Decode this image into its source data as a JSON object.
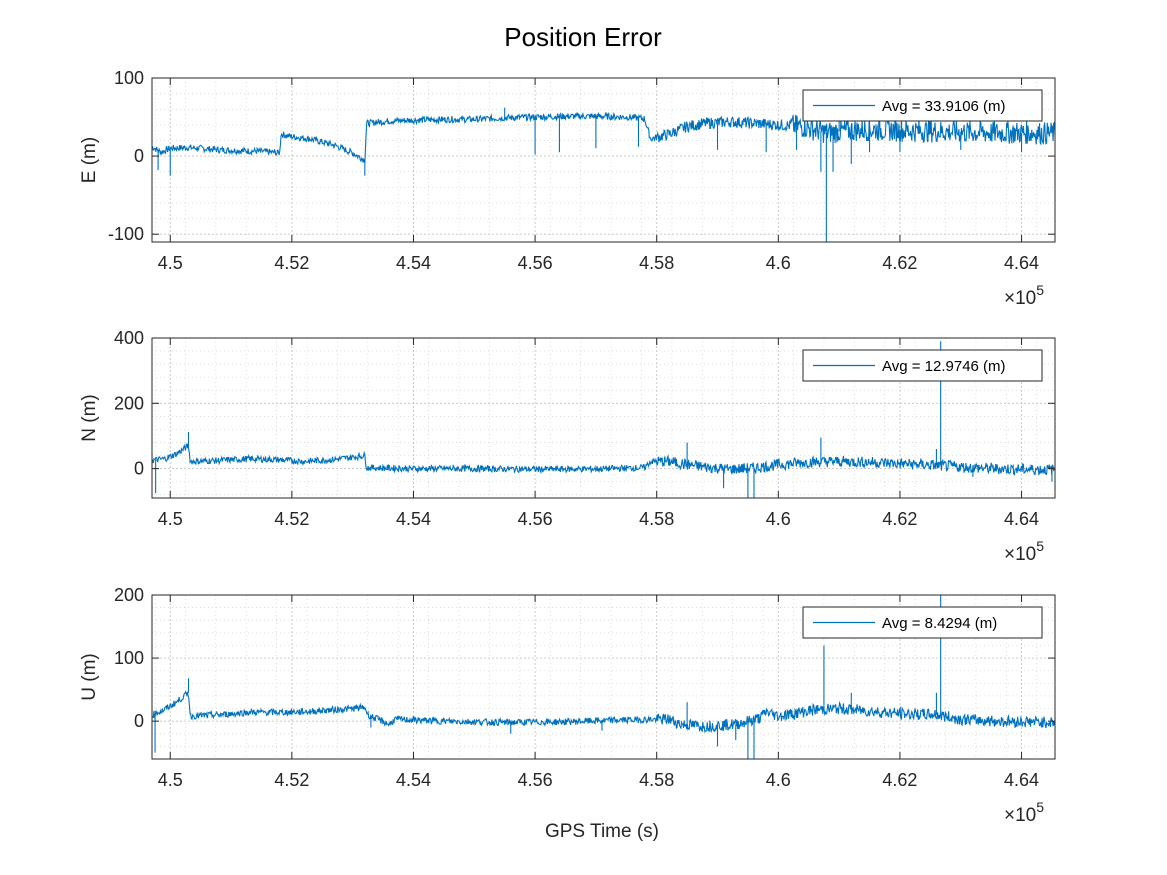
{
  "chart_data": {
    "type": "line",
    "title": "Position Error",
    "xlabel": "GPS Time (s)",
    "x_exponent_label": "×10",
    "x_exponent": "5",
    "xlim": [
      449700,
      464550
    ],
    "x_ticks": [
      450000,
      452000,
      454000,
      456000,
      458000,
      460000,
      462000,
      464000
    ],
    "x_tick_labels": [
      "4.5",
      "4.52",
      "4.54",
      "4.56",
      "4.58",
      "4.6",
      "4.62",
      "4.64"
    ],
    "grid": true,
    "minor_grid": true,
    "line_color": "#0072BD",
    "legend_location": "top-right",
    "subplots": [
      {
        "ylabel": "E (m)",
        "ylim": [
          -110,
          100
        ],
        "y_ticks": [
          -100,
          0,
          100
        ],
        "y_tick_labels": [
          "-100",
          "0",
          "100"
        ],
        "legend": "Avg = 33.9106 (m)",
        "series": [
          {
            "x": 449700,
            "y": 12
          },
          {
            "x": 449850,
            "y": 5
          },
          {
            "x": 450000,
            "y": 10
          },
          {
            "x": 450300,
            "y": 11
          },
          {
            "x": 450800,
            "y": 8
          },
          {
            "x": 451500,
            "y": 6
          },
          {
            "x": 451800,
            "y": 4
          },
          {
            "x": 451820,
            "y": 28
          },
          {
            "x": 452000,
            "y": 25
          },
          {
            "x": 452300,
            "y": 22
          },
          {
            "x": 452700,
            "y": 14
          },
          {
            "x": 453000,
            "y": 4
          },
          {
            "x": 453200,
            "y": -5
          },
          {
            "x": 453230,
            "y": 42
          },
          {
            "x": 453600,
            "y": 45
          },
          {
            "x": 454000,
            "y": 46
          },
          {
            "x": 454500,
            "y": 47
          },
          {
            "x": 455000,
            "y": 47
          },
          {
            "x": 455500,
            "y": 49
          },
          {
            "x": 456000,
            "y": 50
          },
          {
            "x": 456500,
            "y": 51
          },
          {
            "x": 457000,
            "y": 51
          },
          {
            "x": 457500,
            "y": 50
          },
          {
            "x": 457800,
            "y": 48
          },
          {
            "x": 457900,
            "y": 22
          },
          {
            "x": 458200,
            "y": 28
          },
          {
            "x": 458500,
            "y": 38
          },
          {
            "x": 458800,
            "y": 42
          },
          {
            "x": 459200,
            "y": 44
          },
          {
            "x": 459600,
            "y": 42
          },
          {
            "x": 460000,
            "y": 40
          },
          {
            "x": 460400,
            "y": 38
          },
          {
            "x": 460800,
            "y": 30
          },
          {
            "x": 461200,
            "y": 33
          },
          {
            "x": 461600,
            "y": 34
          },
          {
            "x": 462000,
            "y": 33
          },
          {
            "x": 462500,
            "y": 32
          },
          {
            "x": 463000,
            "y": 31
          },
          {
            "x": 463500,
            "y": 30
          },
          {
            "x": 464000,
            "y": 30
          },
          {
            "x": 464550,
            "y": 29
          }
        ],
        "spikes": [
          {
            "x": 449800,
            "y": -18
          },
          {
            "x": 450000,
            "y": -25
          },
          {
            "x": 453200,
            "y": -25
          },
          {
            "x": 455500,
            "y": 62
          },
          {
            "x": 456000,
            "y": 2
          },
          {
            "x": 456400,
            "y": 5
          },
          {
            "x": 457000,
            "y": 10
          },
          {
            "x": 457700,
            "y": 12
          },
          {
            "x": 459000,
            "y": 8
          },
          {
            "x": 459800,
            "y": 5
          },
          {
            "x": 460300,
            "y": 8
          },
          {
            "x": 460700,
            "y": -20
          },
          {
            "x": 460790,
            "y": -110
          },
          {
            "x": 460900,
            "y": -20
          },
          {
            "x": 461200,
            "y": -10
          },
          {
            "x": 461500,
            "y": 5
          },
          {
            "x": 461000,
            "y": 60
          },
          {
            "x": 462000,
            "y": 5
          },
          {
            "x": 463000,
            "y": 8
          },
          {
            "x": 464000,
            "y": 5
          }
        ]
      },
      {
        "ylabel": "N (m)",
        "ylim": [
          -90,
          400
        ],
        "y_ticks": [
          0,
          200,
          400
        ],
        "y_tick_labels": [
          "0",
          "200",
          "400"
        ],
        "legend": "Avg = 12.9746 (m)",
        "series": [
          {
            "x": 449700,
            "y": 25
          },
          {
            "x": 449900,
            "y": 30
          },
          {
            "x": 450100,
            "y": 45
          },
          {
            "x": 450300,
            "y": 70
          },
          {
            "x": 450330,
            "y": 22
          },
          {
            "x": 450800,
            "y": 25
          },
          {
            "x": 451300,
            "y": 30
          },
          {
            "x": 451800,
            "y": 27
          },
          {
            "x": 452200,
            "y": 22
          },
          {
            "x": 452700,
            "y": 28
          },
          {
            "x": 453000,
            "y": 35
          },
          {
            "x": 453200,
            "y": 40
          },
          {
            "x": 453230,
            "y": 3
          },
          {
            "x": 454000,
            "y": 0
          },
          {
            "x": 455000,
            "y": 0
          },
          {
            "x": 456000,
            "y": -2
          },
          {
            "x": 457000,
            "y": -1
          },
          {
            "x": 457800,
            "y": 3
          },
          {
            "x": 457900,
            "y": 22
          },
          {
            "x": 458200,
            "y": 22
          },
          {
            "x": 458500,
            "y": 12
          },
          {
            "x": 458800,
            "y": 5
          },
          {
            "x": 459200,
            "y": -2
          },
          {
            "x": 459600,
            "y": 2
          },
          {
            "x": 460000,
            "y": 12
          },
          {
            "x": 460500,
            "y": 20
          },
          {
            "x": 461000,
            "y": 22
          },
          {
            "x": 461500,
            "y": 20
          },
          {
            "x": 462000,
            "y": 15
          },
          {
            "x": 462600,
            "y": 10
          },
          {
            "x": 463000,
            "y": 5
          },
          {
            "x": 463500,
            "y": 0
          },
          {
            "x": 464000,
            "y": -2
          },
          {
            "x": 464550,
            "y": -3
          }
        ],
        "spikes": [
          {
            "x": 449760,
            "y": -75
          },
          {
            "x": 450300,
            "y": 112
          },
          {
            "x": 458500,
            "y": 80
          },
          {
            "x": 459100,
            "y": -60
          },
          {
            "x": 459500,
            "y": -90
          },
          {
            "x": 459600,
            "y": -90
          },
          {
            "x": 460700,
            "y": 95
          },
          {
            "x": 462670,
            "y": 390
          },
          {
            "x": 462600,
            "y": 60
          },
          {
            "x": 463200,
            "y": -25
          },
          {
            "x": 464500,
            "y": -40
          }
        ]
      },
      {
        "ylabel": "U (m)",
        "ylim": [
          -60,
          200
        ],
        "y_ticks": [
          0,
          100,
          200
        ],
        "y_tick_labels": [
          "0",
          "100",
          "200"
        ],
        "legend": "Avg = 8.4294 (m)",
        "series": [
          {
            "x": 449700,
            "y": 10
          },
          {
            "x": 449900,
            "y": 18
          },
          {
            "x": 450100,
            "y": 30
          },
          {
            "x": 450300,
            "y": 45
          },
          {
            "x": 450330,
            "y": 8
          },
          {
            "x": 450800,
            "y": 10
          },
          {
            "x": 451300,
            "y": 14
          },
          {
            "x": 451800,
            "y": 14
          },
          {
            "x": 452200,
            "y": 15
          },
          {
            "x": 452700,
            "y": 18
          },
          {
            "x": 453000,
            "y": 20
          },
          {
            "x": 453200,
            "y": 22
          },
          {
            "x": 453250,
            "y": 10
          },
          {
            "x": 453600,
            "y": -5
          },
          {
            "x": 453700,
            "y": 3
          },
          {
            "x": 454500,
            "y": 0
          },
          {
            "x": 455500,
            "y": -2
          },
          {
            "x": 456500,
            "y": -1
          },
          {
            "x": 457500,
            "y": 2
          },
          {
            "x": 458200,
            "y": 3
          },
          {
            "x": 458400,
            "y": -5
          },
          {
            "x": 458800,
            "y": -8
          },
          {
            "x": 459300,
            "y": -5
          },
          {
            "x": 459700,
            "y": 5
          },
          {
            "x": 459800,
            "y": 15
          },
          {
            "x": 460000,
            "y": 8
          },
          {
            "x": 460600,
            "y": 18
          },
          {
            "x": 461000,
            "y": 20
          },
          {
            "x": 461600,
            "y": 15
          },
          {
            "x": 462000,
            "y": 12
          },
          {
            "x": 462600,
            "y": 10
          },
          {
            "x": 463000,
            "y": 3
          },
          {
            "x": 463600,
            "y": 0
          },
          {
            "x": 464550,
            "y": -2
          }
        ],
        "spikes": [
          {
            "x": 449750,
            "y": -50
          },
          {
            "x": 450300,
            "y": 68
          },
          {
            "x": 453300,
            "y": -10
          },
          {
            "x": 455600,
            "y": -20
          },
          {
            "x": 457100,
            "y": -15
          },
          {
            "x": 458500,
            "y": 30
          },
          {
            "x": 459000,
            "y": -40
          },
          {
            "x": 459300,
            "y": -30
          },
          {
            "x": 459500,
            "y": -60
          },
          {
            "x": 459600,
            "y": -60
          },
          {
            "x": 460750,
            "y": 120
          },
          {
            "x": 461200,
            "y": 45
          },
          {
            "x": 462670,
            "y": 200
          },
          {
            "x": 462600,
            "y": 45
          }
        ]
      }
    ]
  }
}
